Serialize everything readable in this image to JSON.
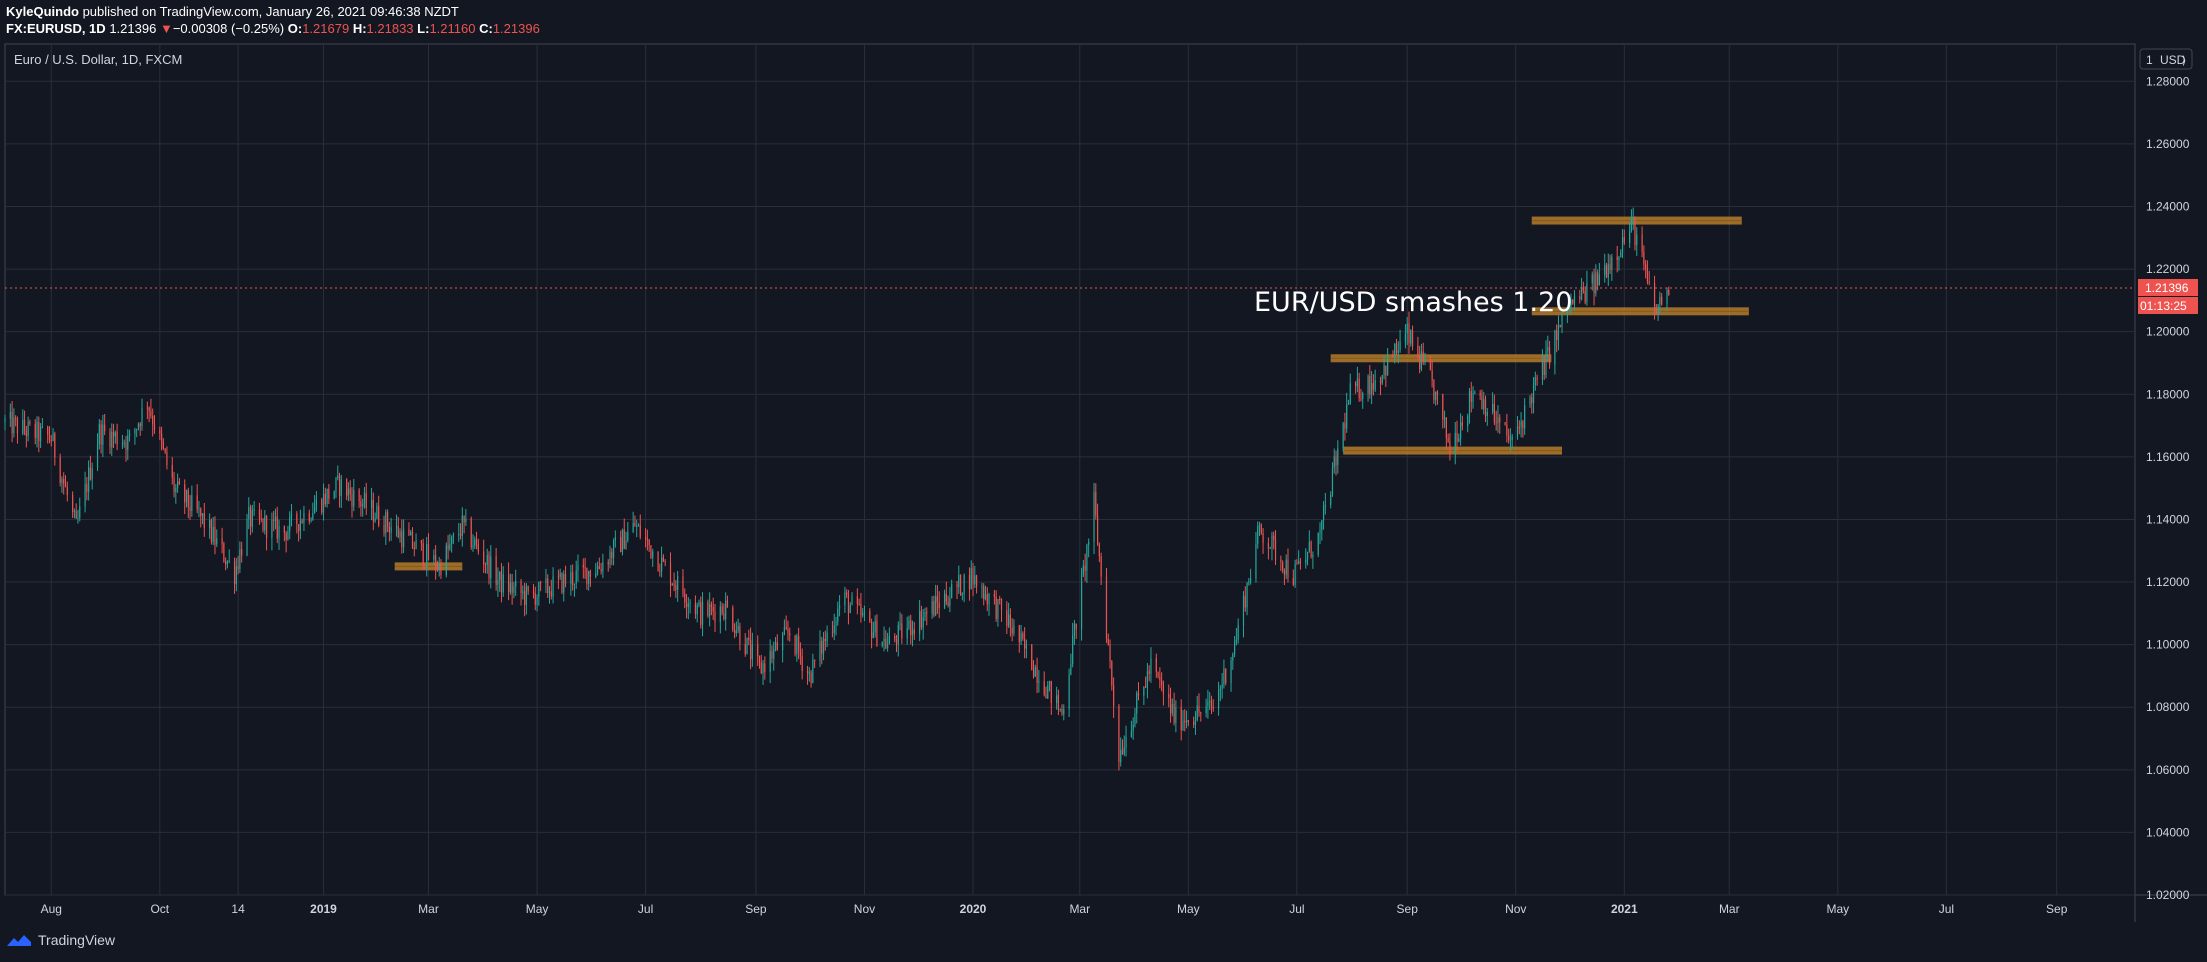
{
  "header": {
    "author": "KyleQuindo",
    "published_text": "published on TradingView.com, January 26, 2021 09:46:38 NZDT",
    "symbol": "FX:EURUSD, 1D",
    "last": "1.21396",
    "change": "−0.00308 (−0.25%)",
    "o_label": "O:",
    "o": "1.21679",
    "h_label": "H:",
    "h": "1.21833",
    "l_label": "L:",
    "l": "1.21160",
    "c_label": "C:",
    "c": "1.21396"
  },
  "chart_label": "Euro / U.S. Dollar, 1D, FXCM",
  "currency_label": "USD",
  "scale_mode": "1",
  "price_tag": "1.21396",
  "countdown_tag": "01:13:25",
  "annotation": "EUR/USD smashes 1.20",
  "footer": {
    "brand": "TradingView"
  },
  "colors": {
    "up": "#26a69a",
    "down": "#ef5350",
    "zone": "#c98a2e",
    "bg": "#131722",
    "grid": "#2a2e39"
  },
  "chart_data": {
    "type": "candlestick",
    "title": "Euro / U.S. Dollar, 1D, FXCM",
    "y_unit": "USD",
    "ylim": [
      1.02,
      1.29
    ],
    "y_ticks": [
      "1.28000",
      "1.26000",
      "1.24000",
      "1.22000",
      "1.20000",
      "1.18000",
      "1.16000",
      "1.14000",
      "1.12000",
      "1.10000",
      "1.08000",
      "1.06000",
      "1.04000",
      "1.02000"
    ],
    "x_range": [
      "2018-07-06",
      "2021-10-15"
    ],
    "x_ticks": [
      {
        "label": "Aug",
        "date": "2018-08-01",
        "bold": false
      },
      {
        "label": "Oct",
        "date": "2018-10-01",
        "bold": false
      },
      {
        "label": "14",
        "date": "2018-11-14",
        "bold": false
      },
      {
        "label": "2019",
        "date": "2019-01-01",
        "bold": true
      },
      {
        "label": "Mar",
        "date": "2019-03-01",
        "bold": false
      },
      {
        "label": "May",
        "date": "2019-05-01",
        "bold": false
      },
      {
        "label": "Jul",
        "date": "2019-07-01",
        "bold": false
      },
      {
        "label": "Sep",
        "date": "2019-09-01",
        "bold": false
      },
      {
        "label": "Nov",
        "date": "2019-11-01",
        "bold": false
      },
      {
        "label": "2020",
        "date": "2020-01-01",
        "bold": true
      },
      {
        "label": "Mar",
        "date": "2020-03-01",
        "bold": false
      },
      {
        "label": "May",
        "date": "2020-05-01",
        "bold": false
      },
      {
        "label": "Jul",
        "date": "2020-07-01",
        "bold": false
      },
      {
        "label": "Sep",
        "date": "2020-09-01",
        "bold": false
      },
      {
        "label": "Nov",
        "date": "2020-11-01",
        "bold": false
      },
      {
        "label": "2021",
        "date": "2021-01-01",
        "bold": true
      },
      {
        "label": "Mar",
        "date": "2021-03-01",
        "bold": false
      },
      {
        "label": "May",
        "date": "2021-05-01",
        "bold": false
      },
      {
        "label": "Jul",
        "date": "2021-07-01",
        "bold": false
      },
      {
        "label": "Sep",
        "date": "2021-09-01",
        "bold": false
      }
    ],
    "price_path": [
      [
        "2018-07-06",
        1.171
      ],
      [
        "2018-07-20",
        1.168
      ],
      [
        "2018-08-01",
        1.166
      ],
      [
        "2018-08-15",
        1.137
      ],
      [
        "2018-08-28",
        1.168
      ],
      [
        "2018-09-14",
        1.165
      ],
      [
        "2018-09-24",
        1.178
      ],
      [
        "2018-10-09",
        1.15
      ],
      [
        "2018-10-25",
        1.14
      ],
      [
        "2018-11-12",
        1.123
      ],
      [
        "2018-11-20",
        1.14
      ],
      [
        "2018-12-10",
        1.136
      ],
      [
        "2019-01-10",
        1.151
      ],
      [
        "2019-01-30",
        1.142
      ],
      [
        "2019-02-20",
        1.132
      ],
      [
        "2019-03-07",
        1.125
      ],
      [
        "2019-03-20",
        1.138
      ],
      [
        "2019-04-10",
        1.12
      ],
      [
        "2019-04-26",
        1.115
      ],
      [
        "2019-05-15",
        1.12
      ],
      [
        "2019-06-05",
        1.125
      ],
      [
        "2019-06-25",
        1.138
      ],
      [
        "2019-07-15",
        1.122
      ],
      [
        "2019-08-01",
        1.11
      ],
      [
        "2019-08-15",
        1.112
      ],
      [
        "2019-09-03",
        1.092
      ],
      [
        "2019-09-20",
        1.104
      ],
      [
        "2019-10-01",
        1.09
      ],
      [
        "2019-10-20",
        1.115
      ],
      [
        "2019-11-14",
        1.1
      ],
      [
        "2019-12-10",
        1.112
      ],
      [
        "2019-12-31",
        1.122
      ],
      [
        "2020-01-20",
        1.108
      ],
      [
        "2020-02-20",
        1.078
      ],
      [
        "2020-03-09",
        1.145
      ],
      [
        "2020-03-23",
        1.065
      ],
      [
        "2020-04-10",
        1.093
      ],
      [
        "2020-04-24",
        1.076
      ],
      [
        "2020-05-06",
        1.078
      ],
      [
        "2020-05-15",
        1.08
      ],
      [
        "2020-05-27",
        1.1
      ],
      [
        "2020-06-10",
        1.137
      ],
      [
        "2020-06-29",
        1.122
      ],
      [
        "2020-07-14",
        1.135
      ],
      [
        "2020-07-31",
        1.18
      ],
      [
        "2020-08-15",
        1.185
      ],
      [
        "2020-09-01",
        1.199
      ],
      [
        "2020-09-15",
        1.183
      ],
      [
        "2020-09-25",
        1.163
      ],
      [
        "2020-10-09",
        1.182
      ],
      [
        "2020-10-30",
        1.164
      ],
      [
        "2020-11-10",
        1.18
      ],
      [
        "2020-12-01",
        1.208
      ],
      [
        "2020-12-15",
        1.215
      ],
      [
        "2021-01-06",
        1.234
      ],
      [
        "2021-01-18",
        1.206
      ],
      [
        "2021-01-26",
        1.214
      ]
    ],
    "zones": [
      {
        "from": "2020-11-10",
        "to": "2021-03-08",
        "price": 1.2355
      },
      {
        "from": "2020-11-10",
        "to": "2021-03-12",
        "price": 1.2065
      },
      {
        "from": "2020-07-20",
        "to": "2020-11-21",
        "price": 1.1915
      },
      {
        "from": "2020-07-27",
        "to": "2020-11-27",
        "price": 1.162
      },
      {
        "from": "2019-02-10",
        "to": "2019-03-20",
        "price": 1.125
      }
    ],
    "last_price": 1.21396
  }
}
